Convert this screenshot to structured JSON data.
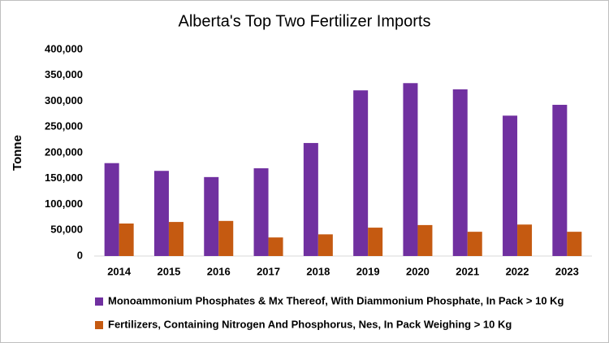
{
  "chart_data": {
    "type": "bar",
    "title": "Alberta's Top Two Fertilizer Imports",
    "y_label": "Tonne",
    "categories": [
      "2014",
      "2015",
      "2016",
      "2017",
      "2018",
      "2019",
      "2020",
      "2021",
      "2022",
      "2023"
    ],
    "series": [
      {
        "name": "Monoammonium Phosphates & Mx Thereof, With Diammonium Phosphate, In Pack > 10 Kg",
        "color": "#7030a0",
        "values": [
          180000,
          165000,
          153000,
          170000,
          219000,
          321000,
          335000,
          323000,
          272000,
          293000
        ]
      },
      {
        "name": "Fertilizers, Containing Nitrogen And Phosphorus, Nes, In Pack Weighing > 10 Kg",
        "color": "#c55a11",
        "values": [
          63000,
          66000,
          68000,
          36000,
          42000,
          55000,
          60000,
          47000,
          61000,
          47000
        ]
      }
    ],
    "ylim": [
      0,
      400000
    ],
    "yticks": [
      0,
      {
        "value": 50000,
        "label": "50,000"
      },
      {
        "value": 100000,
        "label": "100,000"
      },
      {
        "value": 150000,
        "label": "150,000"
      },
      {
        "value": 200000,
        "label": "200,000"
      },
      {
        "value": 250000,
        "label": "250,000"
      },
      {
        "value": 300000,
        "label": "300,000"
      },
      {
        "value": 350000,
        "label": "350,000"
      },
      {
        "value": 400000,
        "label": "400,000"
      }
    ],
    "grid": false,
    "legend": "bottom"
  }
}
